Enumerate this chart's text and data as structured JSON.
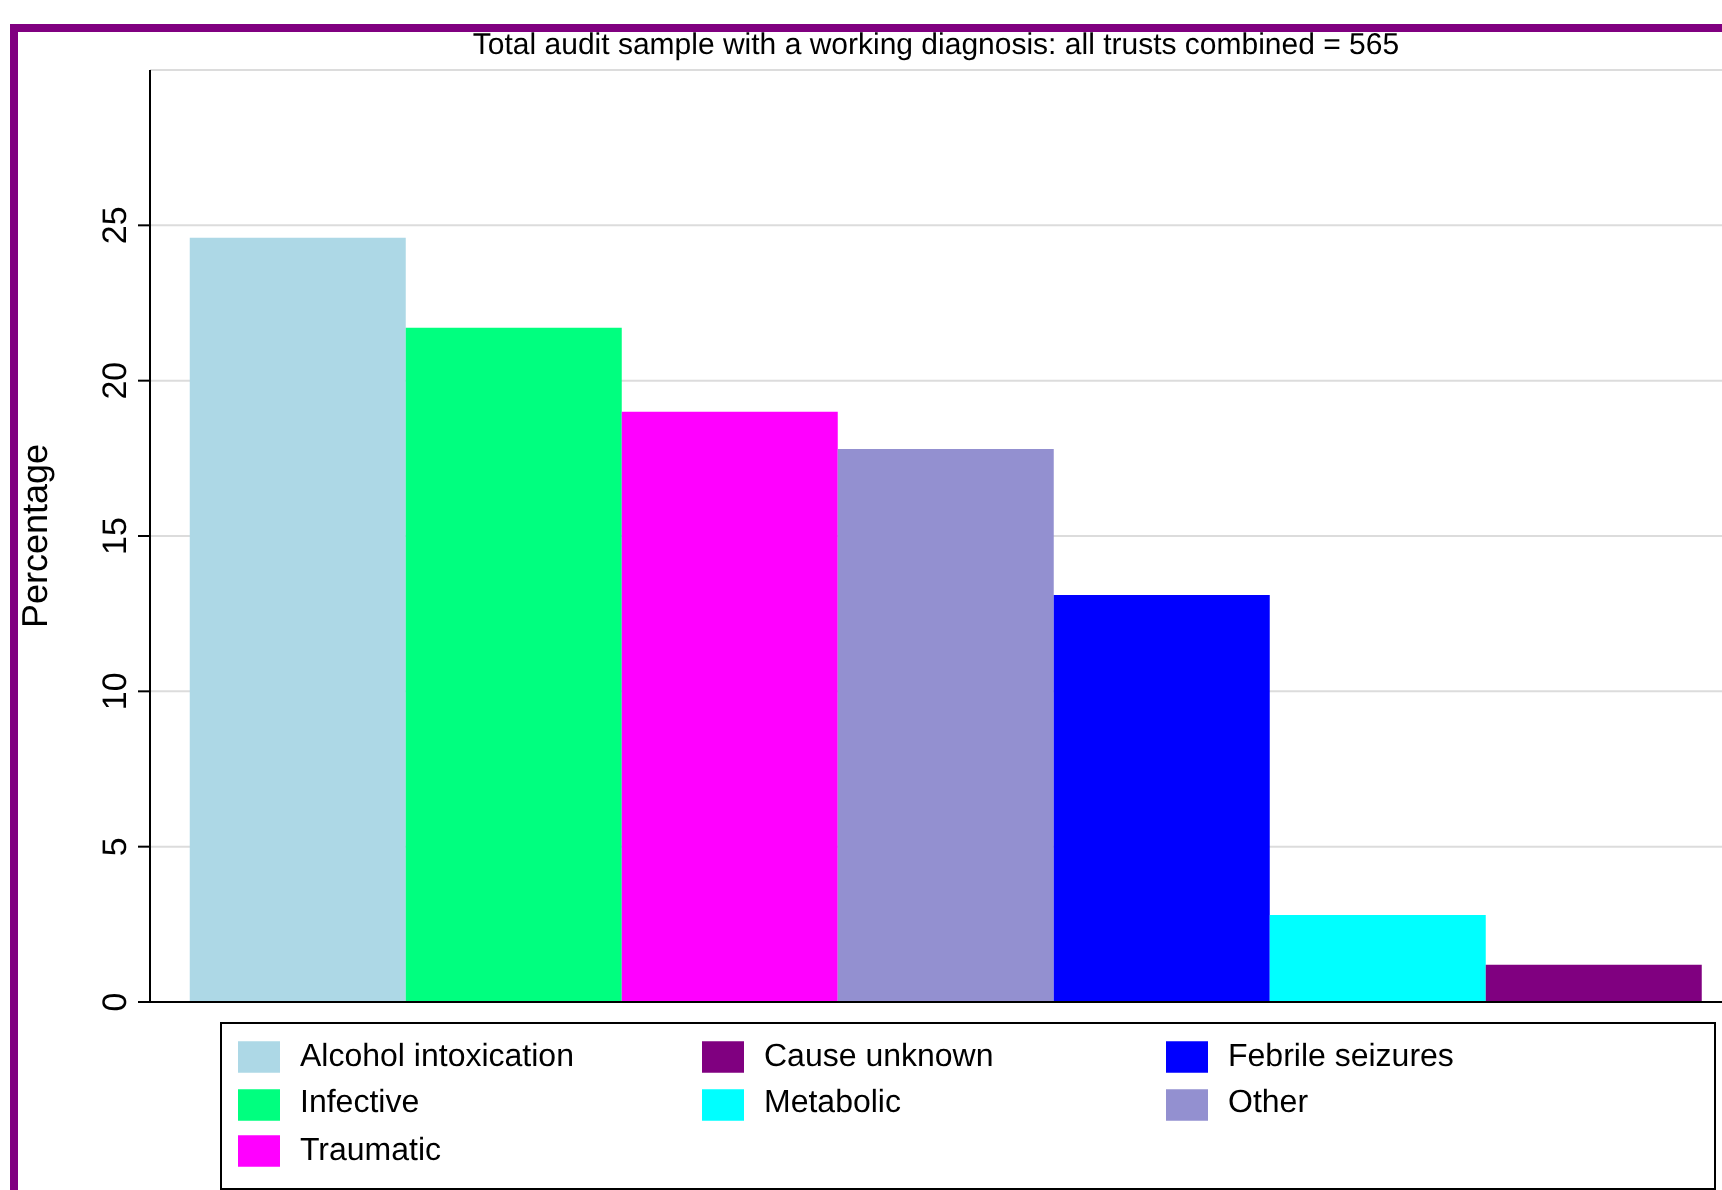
{
  "chart_data": {
    "type": "bar",
    "title": "Total audit sample with a working diagnosis: all trusts combined = 565",
    "ylabel": "Percentage",
    "categories": [
      null
    ],
    "series": [
      {
        "name": "Alcohol intoxication",
        "color": "#add8e6",
        "values": [
          24.6
        ]
      },
      {
        "name": "Infective",
        "color": "#00ff7f",
        "values": [
          21.7
        ]
      },
      {
        "name": "Traumatic",
        "color": "#ff00ff",
        "values": [
          19.0
        ]
      },
      {
        "name": "Other",
        "color": "#9390d0",
        "values": [
          17.8
        ]
      },
      {
        "name": "Febrile seizures",
        "color": "#0000ff",
        "values": [
          13.1
        ]
      },
      {
        "name": "Metabolic",
        "color": "#00ffff",
        "values": [
          2.8
        ]
      },
      {
        "name": "Cause unknown",
        "color": "#800080",
        "values": [
          1.2
        ]
      }
    ],
    "ylim": [
      0,
      30
    ],
    "yticks": [
      0,
      5,
      10,
      15,
      20,
      25
    ],
    "grid": "y",
    "legend": "bottom"
  }
}
